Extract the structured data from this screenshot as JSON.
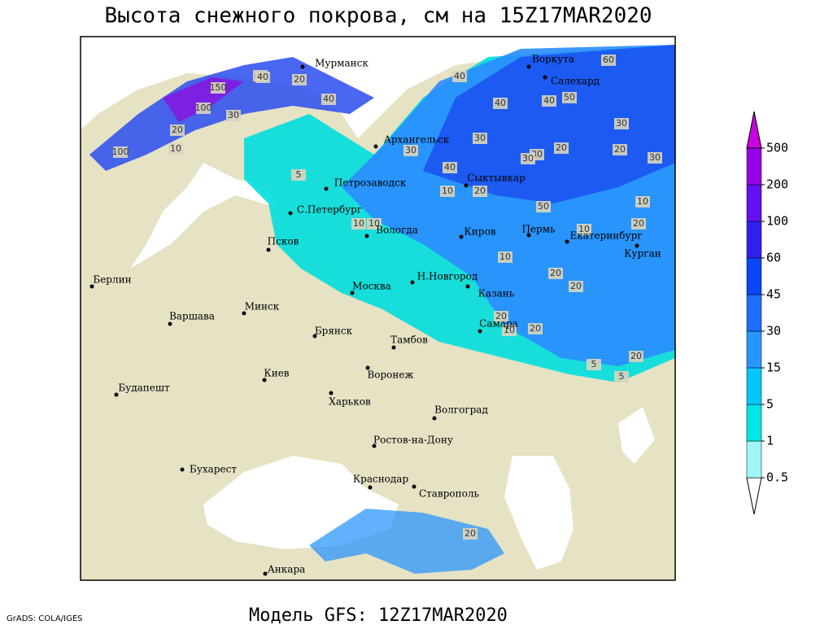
{
  "header": {
    "title": "Высота снежного покрова, см на 15Z17MAR2020"
  },
  "map": {
    "cities": [
      "Мурманск",
      "Воркута",
      "Салехард",
      "Архангельск",
      "Сыктывкар",
      "Петрозаводск",
      "С.Петербург",
      "Вологда",
      "Киров",
      "Пермь",
      "Екатеринбург",
      "Курган",
      "Псков",
      "Берлин",
      "Н.Новгород",
      "Москва",
      "Казань",
      "Минск",
      "Варшава",
      "Брянск",
      "Самара",
      "Тамбов",
      "Воронеж",
      "Киев",
      "Будапешт",
      "Харьков",
      "Волгоград",
      "Ростов-на-Дону",
      "Бухарест",
      "Краснодар",
      "Ставрополь",
      "Анкара"
    ],
    "contour_labels": [
      40,
      20,
      150,
      100,
      100,
      30,
      20,
      10,
      40,
      40,
      30,
      30,
      40,
      50,
      40,
      60,
      40,
      30,
      30,
      20,
      20,
      50,
      30,
      40,
      20,
      10,
      10,
      10,
      20,
      5,
      10,
      10,
      20,
      20,
      10,
      20,
      20,
      5,
      5,
      20,
      10,
      30,
      20
    ]
  },
  "colorbar": {
    "levels": [
      0.5,
      1,
      5,
      15,
      30,
      45,
      60,
      100,
      200,
      500
    ],
    "colors": [
      "#ffffff",
      "#a0f5f5",
      "#00e6e6",
      "#00c8ff",
      "#2896ff",
      "#1e6eff",
      "#0a46f5",
      "#3020f0",
      "#6410f0",
      "#9600e6",
      "#c800e0"
    ]
  },
  "footer": {
    "model": "Модель GFS: 12Z17MAR2020",
    "credit": "GrADS: COLA/IGES"
  }
}
